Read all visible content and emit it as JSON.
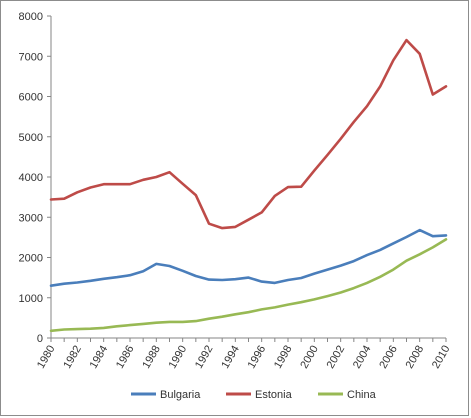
{
  "chart_data": {
    "type": "line",
    "title": "",
    "xlabel": "",
    "ylabel": "",
    "x": [
      1980,
      1981,
      1982,
      1983,
      1984,
      1985,
      1986,
      1987,
      1988,
      1989,
      1990,
      1991,
      1992,
      1993,
      1994,
      1995,
      1996,
      1997,
      1998,
      1999,
      2000,
      2001,
      2002,
      2003,
      2004,
      2005,
      2006,
      2007,
      2008,
      2009,
      2010
    ],
    "xticks": [
      1980,
      1982,
      1984,
      1986,
      1988,
      1990,
      1992,
      1994,
      1996,
      1998,
      2000,
      2002,
      2004,
      2006,
      2008,
      2010
    ],
    "ylim": [
      0,
      8000
    ],
    "yticks": [
      0,
      1000,
      2000,
      3000,
      4000,
      5000,
      6000,
      7000,
      8000
    ],
    "grid": false,
    "legend_position": "bottom",
    "series": [
      {
        "name": "Bulgaria",
        "color": "#4a7ebb",
        "values": [
          1300,
          1350,
          1380,
          1420,
          1470,
          1510,
          1560,
          1660,
          1840,
          1790,
          1670,
          1540,
          1450,
          1440,
          1460,
          1500,
          1400,
          1370,
          1440,
          1490,
          1600,
          1700,
          1800,
          1910,
          2060,
          2190,
          2350,
          2510,
          2680,
          2530,
          2550
        ]
      },
      {
        "name": "Estonia",
        "color": "#be4b48",
        "values": [
          3440,
          3460,
          3620,
          3740,
          3820,
          3820,
          3820,
          3930,
          4000,
          4120,
          3830,
          3550,
          2840,
          2730,
          2760,
          2940,
          3120,
          3530,
          3750,
          3760,
          4160,
          4550,
          4950,
          5370,
          5760,
          6250,
          6900,
          7400,
          7060,
          6050,
          6250
        ]
      },
      {
        "name": "China",
        "color": "#98b954",
        "values": [
          180,
          210,
          220,
          230,
          250,
          290,
          320,
          350,
          380,
          400,
          400,
          420,
          480,
          530,
          590,
          640,
          710,
          760,
          830,
          890,
          960,
          1040,
          1130,
          1240,
          1370,
          1520,
          1700,
          1920,
          2080,
          2250,
          2450
        ]
      }
    ]
  }
}
